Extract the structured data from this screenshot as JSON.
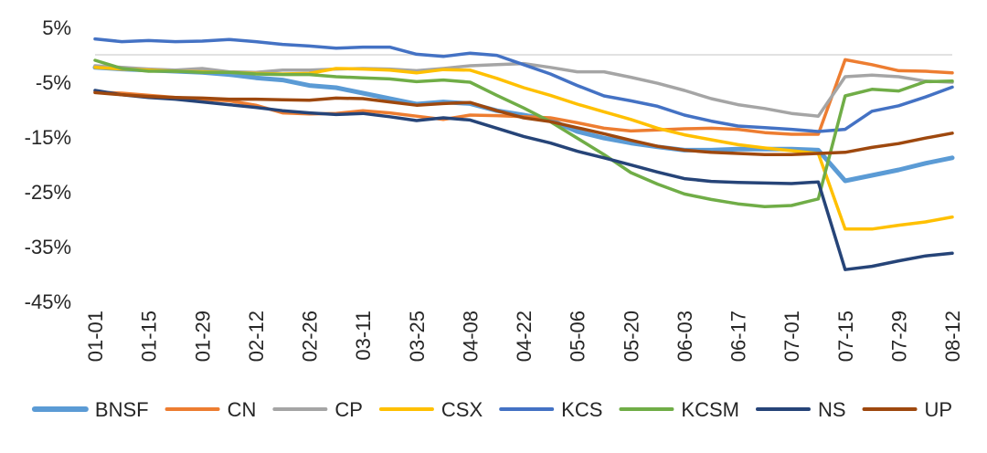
{
  "chart_data": {
    "type": "line",
    "title": "",
    "xlabel": "",
    "ylabel": "",
    "ylim": [
      -45,
      5
    ],
    "yticks": [
      "5%",
      "-5%",
      "-15%",
      "-25%",
      "-35%",
      "-45%"
    ],
    "ytick_values": [
      5,
      -5,
      -15,
      -25,
      -35,
      -45
    ],
    "x": [
      "01-01",
      "01-08",
      "01-15",
      "01-22",
      "01-29",
      "02-05",
      "02-12",
      "02-19",
      "02-26",
      "03-04",
      "03-11",
      "03-18",
      "03-25",
      "04-01",
      "04-08",
      "04-15",
      "04-22",
      "04-29",
      "05-06",
      "05-13",
      "05-20",
      "05-27",
      "06-03",
      "06-10",
      "06-17",
      "06-24",
      "07-01",
      "07-08",
      "07-15",
      "07-22",
      "07-29",
      "08-05",
      "08-12"
    ],
    "xticks": [
      "01-01",
      "01-15",
      "01-29",
      "02-12",
      "02-26",
      "03-11",
      "03-25",
      "04-08",
      "04-22",
      "05-06",
      "05-20",
      "06-03",
      "06-17",
      "07-01",
      "07-15",
      "07-29",
      "08-12"
    ],
    "grid": false,
    "legend": "bottom",
    "series": [
      {
        "name": "BNSF",
        "color": "#5B9BD5",
        "values": [
          -2.3,
          -2.6,
          -2.8,
          -3.0,
          -3.2,
          -3.6,
          -4.2,
          -4.6,
          -5.6,
          -6.0,
          -7.0,
          -8.0,
          -9.0,
          -8.6,
          -8.9,
          -10.2,
          -11.0,
          -11.9,
          -14.0,
          -15.2,
          -16.1,
          -16.8,
          -17.4,
          -17.4,
          -17.2,
          -17.2,
          -17.2,
          -17.4,
          -23.0,
          -22.0,
          -21.0,
          -19.8,
          -18.8
        ]
      },
      {
        "name": "CN",
        "color": "#ED7D31",
        "values": [
          -6.8,
          -7.0,
          -7.4,
          -7.8,
          -8.1,
          -8.4,
          -9.2,
          -10.6,
          -10.8,
          -10.7,
          -10.2,
          -10.6,
          -11.2,
          -11.8,
          -11.0,
          -11.1,
          -11.3,
          -11.5,
          -12.4,
          -13.4,
          -13.9,
          -13.7,
          -13.5,
          -13.4,
          -13.6,
          -14.2,
          -14.5,
          -14.5,
          -0.9,
          -1.8,
          -2.9,
          -3.0,
          -3.3
        ]
      },
      {
        "name": "CP",
        "color": "#A5A5A5",
        "values": [
          -2.0,
          -2.3,
          -2.6,
          -2.8,
          -2.5,
          -3.1,
          -3.2,
          -2.8,
          -2.8,
          -2.6,
          -2.5,
          -2.6,
          -2.9,
          -2.5,
          -2.0,
          -1.8,
          -1.6,
          -2.3,
          -3.1,
          -3.1,
          -4.1,
          -5.2,
          -6.5,
          -8.0,
          -9.1,
          -9.8,
          -10.7,
          -11.2,
          -4.0,
          -3.7,
          -4.0,
          -4.8,
          -5.0
        ]
      },
      {
        "name": "CSX",
        "color": "#FFC000",
        "values": [
          -2.3,
          -2.6,
          -2.8,
          -3.0,
          -3.1,
          -3.2,
          -3.4,
          -3.5,
          -3.4,
          -2.5,
          -2.6,
          -2.8,
          -3.3,
          -2.7,
          -2.8,
          -4.3,
          -6.0,
          -7.4,
          -9.0,
          -10.4,
          -11.8,
          -13.4,
          -14.6,
          -15.5,
          -16.4,
          -17.0,
          -17.5,
          -18.0,
          -31.8,
          -31.8,
          -31.1,
          -30.5,
          -29.6
        ]
      },
      {
        "name": "KCS",
        "color": "#4472C4",
        "values": [
          2.9,
          2.4,
          2.6,
          2.4,
          2.5,
          2.8,
          2.4,
          1.9,
          1.6,
          1.2,
          1.4,
          1.4,
          0.1,
          -0.3,
          0.3,
          -0.1,
          -1.8,
          -3.5,
          -5.6,
          -7.5,
          -8.4,
          -9.4,
          -11.0,
          -12.1,
          -13.0,
          -13.3,
          -13.6,
          -14.0,
          -13.6,
          -10.3,
          -9.3,
          -7.7,
          -5.9
        ]
      },
      {
        "name": "KCSM",
        "color": "#70AD47",
        "values": [
          -1.0,
          -2.5,
          -3.0,
          -3.0,
          -3.2,
          -3.2,
          -3.5,
          -3.6,
          -3.6,
          -4.0,
          -4.2,
          -4.4,
          -4.9,
          -4.6,
          -5.0,
          -7.4,
          -9.7,
          -12.2,
          -15.2,
          -18.2,
          -21.5,
          -23.6,
          -25.4,
          -26.4,
          -27.2,
          -27.7,
          -27.5,
          -26.3,
          -7.5,
          -6.3,
          -6.6,
          -4.9,
          -4.8
        ]
      },
      {
        "name": "NS",
        "color": "#264478",
        "values": [
          -6.5,
          -7.3,
          -7.8,
          -8.1,
          -8.6,
          -9.1,
          -9.6,
          -10.2,
          -10.6,
          -10.9,
          -10.7,
          -11.3,
          -12.0,
          -11.5,
          -11.9,
          -13.4,
          -14.9,
          -16.1,
          -17.6,
          -18.8,
          -20.1,
          -21.4,
          -22.6,
          -23.1,
          -23.3,
          -23.4,
          -23.5,
          -23.2,
          -39.2,
          -38.6,
          -37.6,
          -36.7,
          -36.2
        ]
      },
      {
        "name": "UP",
        "color": "#9E480E",
        "values": [
          -6.9,
          -7.3,
          -7.6,
          -7.8,
          -7.9,
          -8.1,
          -8.1,
          -8.2,
          -8.3,
          -7.9,
          -8.0,
          -8.6,
          -9.2,
          -8.9,
          -8.7,
          -10.2,
          -11.5,
          -12.2,
          -13.3,
          -14.4,
          -15.6,
          -16.7,
          -17.4,
          -17.8,
          -18.0,
          -18.2,
          -18.2,
          -18.0,
          -17.8,
          -16.9,
          -16.2,
          -15.2,
          -14.3
        ]
      }
    ]
  }
}
